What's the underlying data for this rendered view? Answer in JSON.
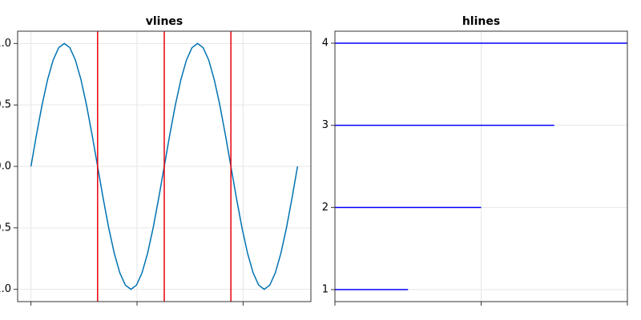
{
  "chart_data": [
    {
      "type": "line",
      "title": "vlines",
      "x": [
        0,
        0.262,
        0.524,
        0.785,
        1.047,
        1.309,
        1.571,
        1.833,
        2.094,
        2.356,
        2.618,
        2.88,
        3.142,
        3.403,
        3.665,
        3.927,
        4.189,
        4.451,
        4.712,
        4.974,
        5.236,
        5.498,
        5.76,
        6.021,
        6.283,
        6.545,
        6.807,
        7.069,
        7.33,
        7.592,
        7.854,
        8.116,
        8.378,
        8.639,
        8.901,
        9.163,
        9.425,
        9.687,
        9.948,
        10.21,
        10.472,
        10.734,
        10.996,
        11.257,
        11.519,
        11.781,
        12.043,
        12.305,
        12.566
      ],
      "series": [
        {
          "color": "#0072b2",
          "values": [
            0,
            0.259,
            0.5,
            0.707,
            0.866,
            0.966,
            1,
            0.966,
            0.866,
            0.707,
            0.5,
            0.259,
            0,
            -0.259,
            -0.5,
            -0.707,
            -0.866,
            -0.966,
            -1,
            -0.966,
            -0.866,
            -0.707,
            -0.5,
            -0.259,
            0,
            0.259,
            0.5,
            0.707,
            0.866,
            0.966,
            1,
            0.966,
            0.866,
            0.707,
            0.5,
            0.259,
            0,
            -0.259,
            -0.5,
            -0.707,
            -0.866,
            -0.966,
            -1,
            -0.966,
            -0.866,
            -0.707,
            -0.5,
            -0.259,
            0
          ]
        }
      ],
      "vlines": {
        "color": "#e8000b",
        "values": [
          3.142,
          6.283,
          9.425
        ]
      },
      "xlim": [
        -0.628,
        13.195
      ],
      "xticks": [
        0,
        5,
        10
      ],
      "ylim": [
        -1.1,
        1.1
      ],
      "yticks": [
        {
          "value": -1,
          "label": "-1.0"
        },
        {
          "value": -0.5,
          "label": "-0.5"
        },
        {
          "value": 0,
          "label": "0.0"
        },
        {
          "value": 0.5,
          "label": "0.5"
        },
        {
          "value": 1,
          "label": "1.0"
        }
      ],
      "grid": true
    },
    {
      "type": "hlines",
      "title": "hlines",
      "values": [
        1,
        2,
        3,
        4
      ],
      "xmax": [
        0.25,
        0.5,
        0.75,
        1
      ],
      "color": "#0000ff",
      "xlim": [
        0,
        1
      ],
      "xticks": [
        0,
        0.5,
        1
      ],
      "ylim": [
        0.854,
        4.146
      ],
      "yticks": [
        1,
        2,
        3,
        4
      ],
      "grid": true
    }
  ]
}
